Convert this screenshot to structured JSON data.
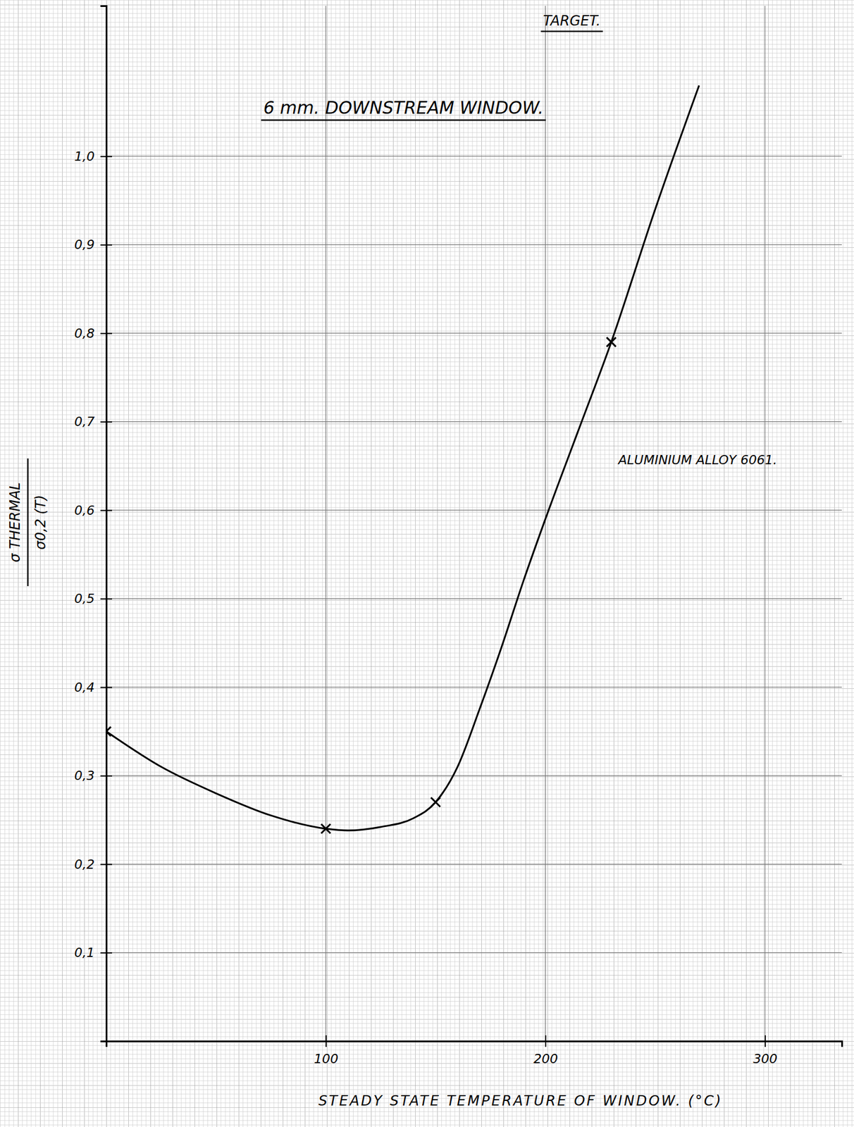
{
  "chart_data": {
    "type": "line",
    "subtitle": "TARGET.",
    "title": "6 mm. DOWNSTREAM WINDOW.",
    "xlabel": "STEADY STATE TEMPERATURE OF WINDOW. (°C)",
    "ylabel": [
      "σ THERMAL",
      "σ0,2 (T)"
    ],
    "annotations": [
      "ALUMINIUM ALLOY 6061."
    ],
    "xlim": [
      0,
      335
    ],
    "ylim": [
      0,
      1.17
    ],
    "xticks": [
      100,
      200,
      300
    ],
    "yticks": [
      {
        "value": 0.1,
        "label": "0,1"
      },
      {
        "value": 0.2,
        "label": "0,2"
      },
      {
        "value": 0.3,
        "label": "0,3"
      },
      {
        "value": 0.4,
        "label": "0,4"
      },
      {
        "value": 0.5,
        "label": "0,5"
      },
      {
        "value": 0.6,
        "label": "0,6"
      },
      {
        "value": 0.7,
        "label": "0,7"
      },
      {
        "value": 0.8,
        "label": "0,8"
      },
      {
        "value": 0.9,
        "label": "0,9"
      },
      {
        "value": 1.0,
        "label": "1,0"
      }
    ],
    "grid": true,
    "series": [
      {
        "type": "line",
        "color": "#000000",
        "line_style": "solid",
        "x": [
          0,
          25,
          50,
          75,
          100,
          110,
          125,
          140,
          150,
          160,
          170,
          180,
          190,
          200,
          215,
          230,
          250,
          270
        ],
        "values": [
          0.35,
          0.31,
          0.28,
          0.255,
          0.24,
          0.238,
          0.242,
          0.252,
          0.27,
          0.31,
          0.375,
          0.445,
          0.52,
          0.59,
          0.69,
          0.79,
          0.94,
          1.08
        ]
      },
      {
        "type": "scatter",
        "color": "#000000",
        "marker": "x",
        "x": [
          0,
          100,
          150,
          230
        ],
        "values": [
          0.35,
          0.24,
          0.27,
          0.79
        ]
      }
    ]
  }
}
